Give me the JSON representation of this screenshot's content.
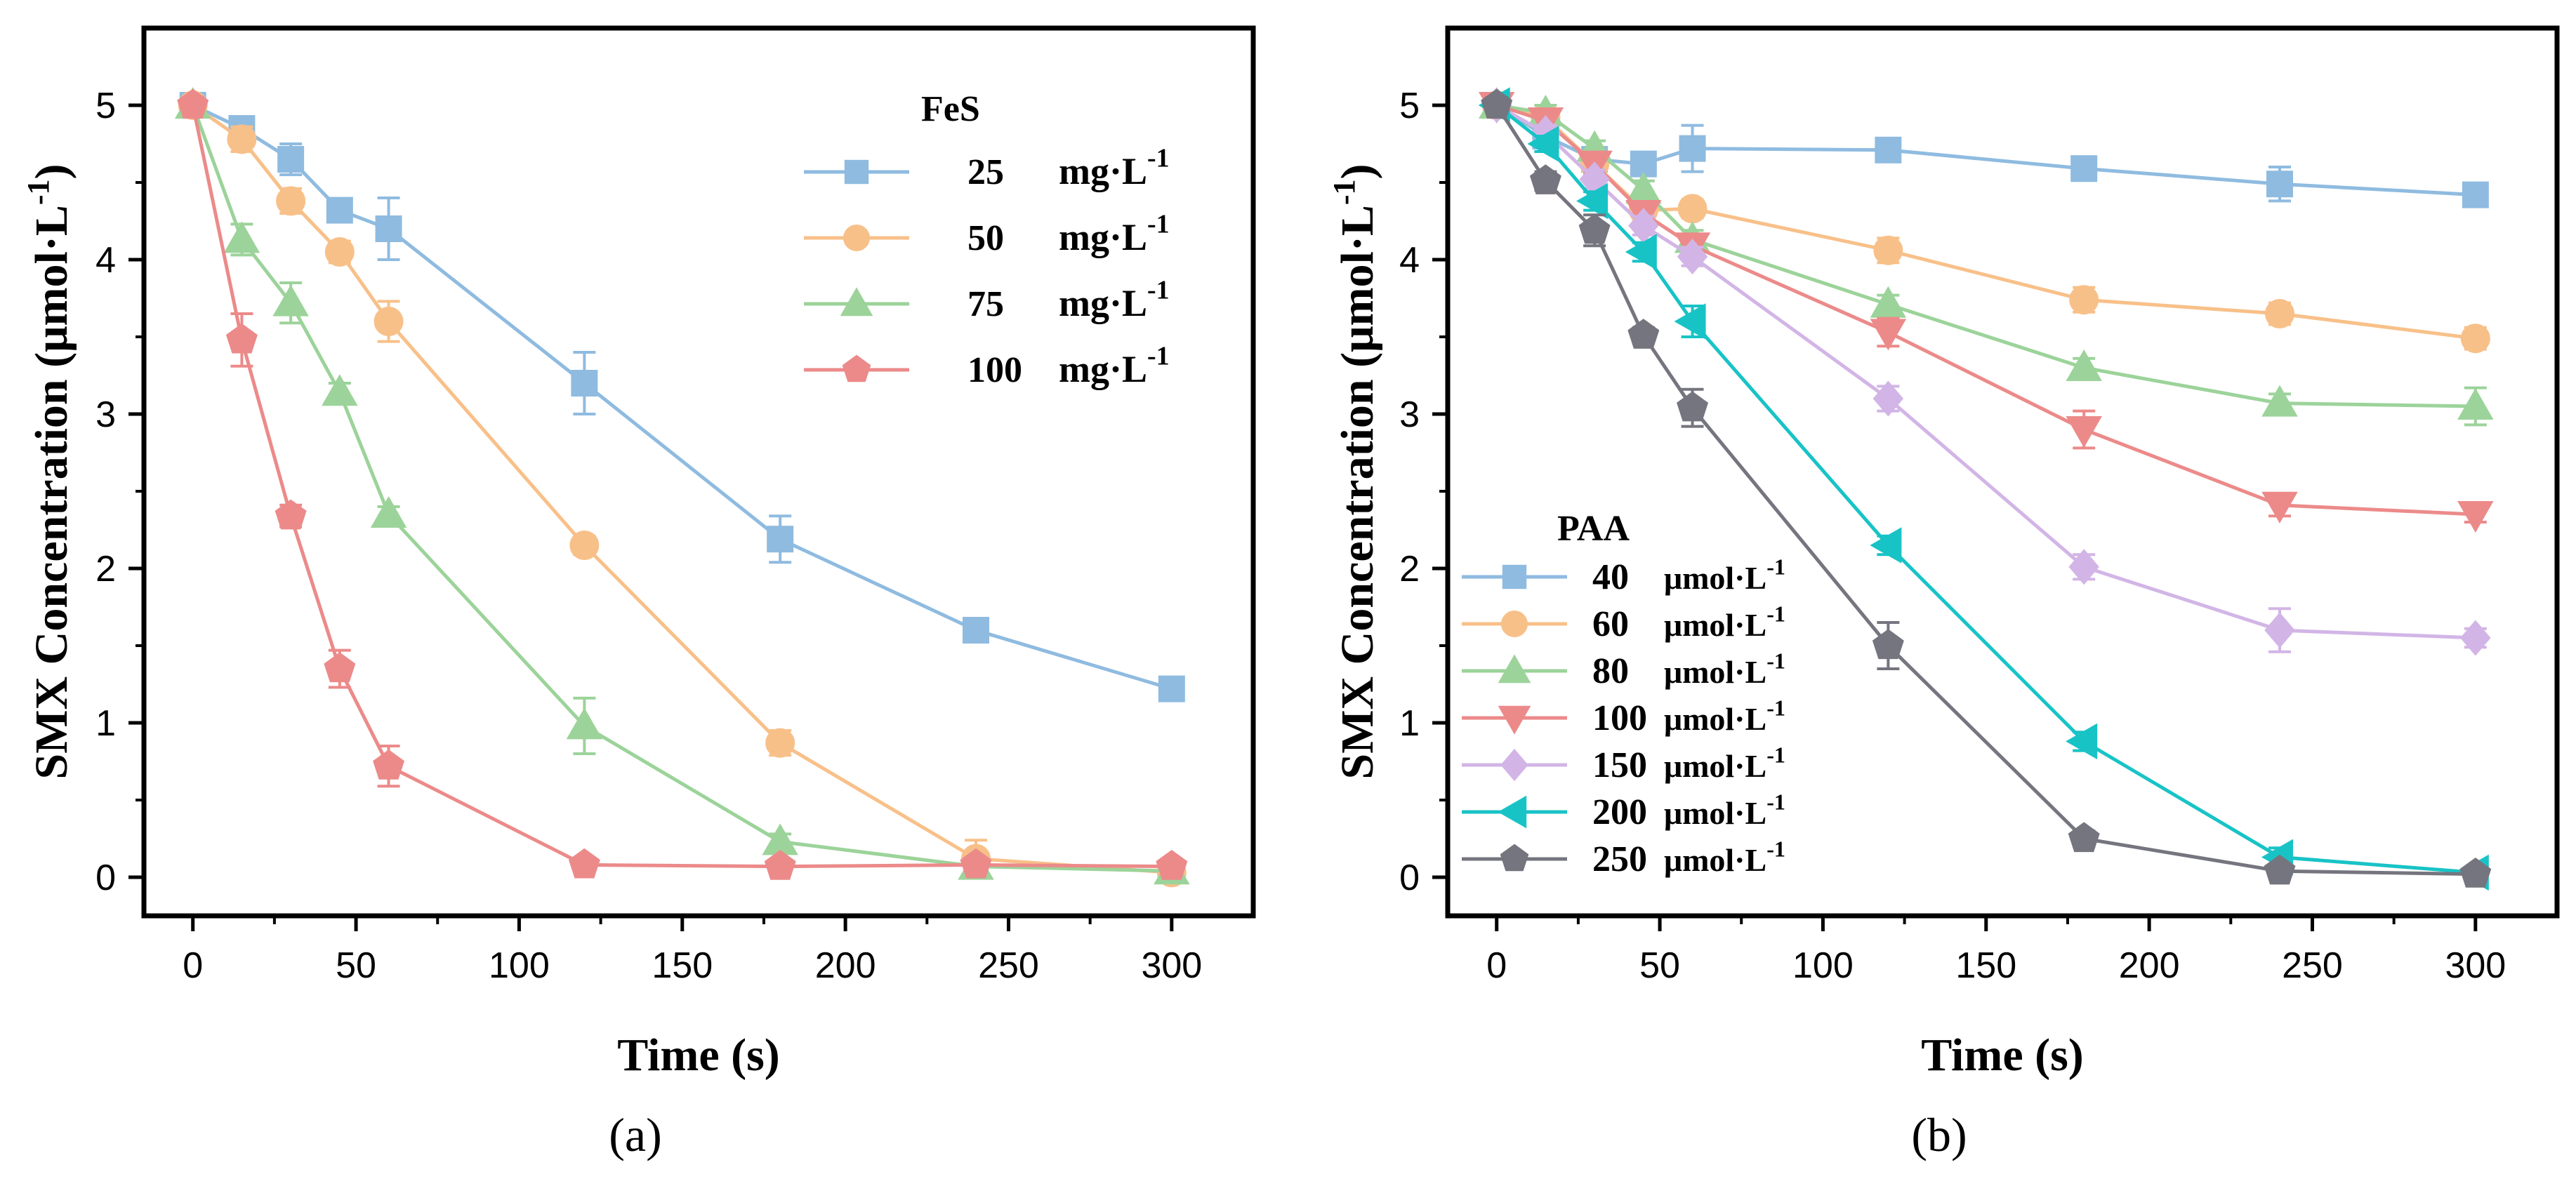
{
  "chart_data": [
    {
      "type": "line",
      "panel": "(a)",
      "xlabel": "Time (s)",
      "ylabel": "SMX Concentration (μmol·L⁻¹)",
      "ylabel_main": "SMX Concentration (μmol·L",
      "ylabel_exp": "-1",
      "ylabel_close": ")",
      "xlim": [
        -15,
        325
      ],
      "ylim": [
        -0.25,
        5.5
      ],
      "xticks": [
        0,
        50,
        100,
        150,
        200,
        250,
        300
      ],
      "yticks": [
        0,
        1,
        2,
        3,
        4,
        5
      ],
      "legend_title": "FeS",
      "legend_position": "top-right",
      "series": [
        {
          "name": "25 mg·L⁻¹",
          "value_label": "25",
          "unit": "mg·L",
          "unit_exp": "-1",
          "color": "#8fbbe0",
          "marker": "square",
          "x": [
            0,
            15,
            30,
            45,
            60,
            120,
            180,
            240,
            300
          ],
          "y": [
            5.0,
            4.85,
            4.65,
            4.32,
            4.2,
            3.2,
            2.19,
            1.6,
            1.22
          ],
          "err": [
            0.05,
            0.06,
            0.1,
            0.05,
            0.2,
            0.2,
            0.15,
            0.07,
            0.04
          ]
        },
        {
          "name": "50 mg·L⁻¹",
          "value_label": "50",
          "unit": "mg·L",
          "unit_exp": "-1",
          "color": "#f8c089",
          "marker": "circle",
          "x": [
            0,
            15,
            30,
            45,
            60,
            120,
            180,
            240,
            300
          ],
          "y": [
            5.0,
            4.78,
            4.38,
            4.05,
            3.6,
            2.15,
            0.87,
            0.12,
            0.03
          ],
          "err": [
            0.05,
            0.08,
            0.08,
            0.07,
            0.13,
            0.06,
            0.08,
            0.12,
            0.03
          ]
        },
        {
          "name": "75 mg·L⁻¹",
          "value_label": "75",
          "unit": "mg·L",
          "unit_exp": "-1",
          "color": "#9cd39a",
          "marker": "triangle-up",
          "x": [
            0,
            15,
            30,
            45,
            60,
            120,
            180,
            240,
            300
          ],
          "y": [
            5.0,
            4.13,
            3.72,
            3.14,
            2.35,
            0.98,
            0.23,
            0.07,
            0.04
          ],
          "err": [
            0.05,
            0.1,
            0.13,
            0.06,
            0.05,
            0.18,
            0.05,
            0.05,
            0.03
          ]
        },
        {
          "name": "100 mg·L⁻¹",
          "value_label": "100",
          "unit": "mg·L",
          "unit_exp": "-1",
          "color": "#ec8a8a",
          "marker": "pentagon",
          "x": [
            0,
            15,
            30,
            45,
            60,
            120,
            180,
            240,
            300
          ],
          "y": [
            5.0,
            3.48,
            2.34,
            1.35,
            0.72,
            0.08,
            0.07,
            0.08,
            0.07
          ],
          "err": [
            0.05,
            0.17,
            0.07,
            0.12,
            0.13,
            0.04,
            0.03,
            0.04,
            0.03
          ]
        }
      ]
    },
    {
      "type": "line",
      "panel": "(b)",
      "xlabel": "Time (s)",
      "ylabel": "SMX Concentration (μmol·L⁻¹)",
      "ylabel_main": "SMX Concentration (μmol·L",
      "ylabel_exp": "-1",
      "ylabel_close": ")",
      "xlim": [
        -15,
        325
      ],
      "ylim": [
        -0.25,
        5.5
      ],
      "xticks": [
        0,
        50,
        100,
        150,
        200,
        250,
        300
      ],
      "yticks": [
        0,
        1,
        2,
        3,
        4,
        5
      ],
      "legend_title": "PAA",
      "legend_position": "bottom-left",
      "series": [
        {
          "name": "40 μmol·L⁻¹",
          "value_label": "40",
          "unit": "μmol·L",
          "unit_exp": "-1",
          "color": "#8fbbe0",
          "marker": "square",
          "x": [
            0,
            15,
            30,
            45,
            60,
            120,
            180,
            240,
            300
          ],
          "y": [
            5.0,
            4.8,
            4.65,
            4.62,
            4.72,
            4.71,
            4.59,
            4.49,
            4.42
          ],
          "err": [
            0.05,
            0.05,
            0.05,
            0.05,
            0.15,
            0.04,
            0.06,
            0.11,
            0.05
          ]
        },
        {
          "name": "60 μmol·L⁻¹",
          "value_label": "60",
          "unit": "μmol·L",
          "unit_exp": "-1",
          "color": "#f8c089",
          "marker": "circle",
          "x": [
            0,
            15,
            30,
            45,
            60,
            120,
            180,
            240,
            300
          ],
          "y": [
            5.0,
            4.92,
            4.62,
            4.32,
            4.33,
            4.06,
            3.74,
            3.65,
            3.49
          ],
          "err": [
            0.05,
            0.05,
            0.05,
            0.06,
            0.06,
            0.08,
            0.08,
            0.07,
            0.07
          ]
        },
        {
          "name": "80 μmol·L⁻¹",
          "value_label": "80",
          "unit": "μmol·L",
          "unit_exp": "-1",
          "color": "#9cd39a",
          "marker": "triangle-up",
          "x": [
            0,
            15,
            30,
            45,
            60,
            120,
            180,
            240,
            300
          ],
          "y": [
            5.0,
            4.95,
            4.72,
            4.45,
            4.13,
            3.71,
            3.3,
            3.07,
            3.05
          ],
          "err": [
            0.05,
            0.05,
            0.05,
            0.06,
            0.06,
            0.06,
            0.06,
            0.06,
            0.12
          ]
        },
        {
          "name": "100 μmol·L⁻¹",
          "value_label": "100",
          "unit": "μmol·L",
          "unit_exp": "-1",
          "color": "#ec8a8a",
          "marker": "triangle-down",
          "x": [
            0,
            15,
            30,
            45,
            60,
            120,
            180,
            240,
            300
          ],
          "y": [
            5.0,
            4.9,
            4.62,
            4.3,
            4.09,
            3.53,
            2.9,
            2.41,
            2.35
          ],
          "err": [
            0.05,
            0.05,
            0.06,
            0.06,
            0.06,
            0.09,
            0.12,
            0.07,
            0.05
          ]
        },
        {
          "name": "150 μmol·L⁻¹",
          "value_label": "150",
          "unit": "μmol·L",
          "unit_exp": "-1",
          "color": "#d2b5e6",
          "marker": "diamond",
          "x": [
            0,
            15,
            30,
            45,
            60,
            120,
            180,
            240,
            300
          ],
          "y": [
            5.0,
            4.82,
            4.52,
            4.22,
            4.02,
            3.1,
            2.01,
            1.6,
            1.55
          ],
          "err": [
            0.05,
            0.05,
            0.06,
            0.06,
            0.06,
            0.08,
            0.08,
            0.14,
            0.06
          ]
        },
        {
          "name": "200 μmol·L⁻¹",
          "value_label": "200",
          "unit": "μmol·L",
          "unit_exp": "-1",
          "color": "#18c3c6",
          "marker": "triangle-left",
          "x": [
            0,
            15,
            30,
            45,
            60,
            120,
            180,
            240,
            300
          ],
          "y": [
            5.0,
            4.75,
            4.38,
            4.05,
            3.6,
            2.15,
            0.88,
            0.13,
            0.03
          ],
          "err": [
            0.05,
            0.05,
            0.06,
            0.06,
            0.1,
            0.06,
            0.06,
            0.06,
            0.02
          ]
        },
        {
          "name": "250 μmol·L⁻¹",
          "value_label": "250",
          "unit": "μmol·L",
          "unit_exp": "-1",
          "color": "#75757f",
          "marker": "pentagon",
          "x": [
            0,
            15,
            30,
            45,
            60,
            120,
            180,
            240,
            300
          ],
          "y": [
            5.0,
            4.51,
            4.19,
            3.51,
            3.04,
            1.5,
            0.25,
            0.04,
            0.02
          ],
          "err": [
            0.05,
            0.06,
            0.1,
            0.05,
            0.12,
            0.15,
            0.05,
            0.03,
            0.02
          ]
        }
      ]
    }
  ]
}
